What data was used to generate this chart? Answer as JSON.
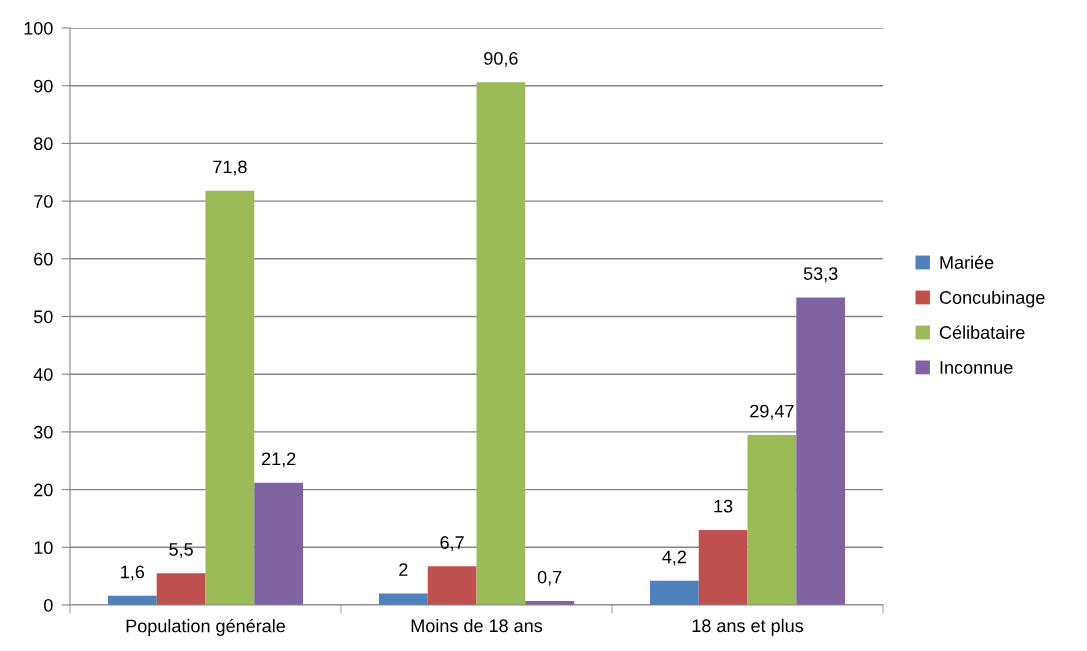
{
  "chart_data": {
    "type": "bar",
    "categories": [
      "Population générale",
      "Moins de 18 ans",
      "18 ans et plus"
    ],
    "series": [
      {
        "name": "Mariée",
        "color": "#4f81bd",
        "values": [
          1.6,
          2,
          4.2
        ],
        "value_labels": [
          "1,6",
          "2",
          "4,2"
        ]
      },
      {
        "name": "Concubinage",
        "color": "#c0504d",
        "values": [
          5.5,
          6.7,
          13
        ],
        "value_labels": [
          "5,5",
          "6,7",
          "13"
        ]
      },
      {
        "name": "Célibataire",
        "color": "#9bbb59",
        "values": [
          71.8,
          90.6,
          29.47
        ],
        "value_labels": [
          "71,8",
          "90,6",
          "29,47"
        ]
      },
      {
        "name": "Inconnue",
        "color": "#8064a2",
        "values": [
          21.2,
          0.7,
          53.3
        ],
        "value_labels": [
          "21,2",
          "0,7",
          "53,3"
        ]
      }
    ],
    "ylim": [
      0,
      100
    ],
    "yticks": [
      0,
      10,
      20,
      30,
      40,
      50,
      60,
      70,
      80,
      90,
      100
    ],
    "grid": "y",
    "legend": "right"
  }
}
